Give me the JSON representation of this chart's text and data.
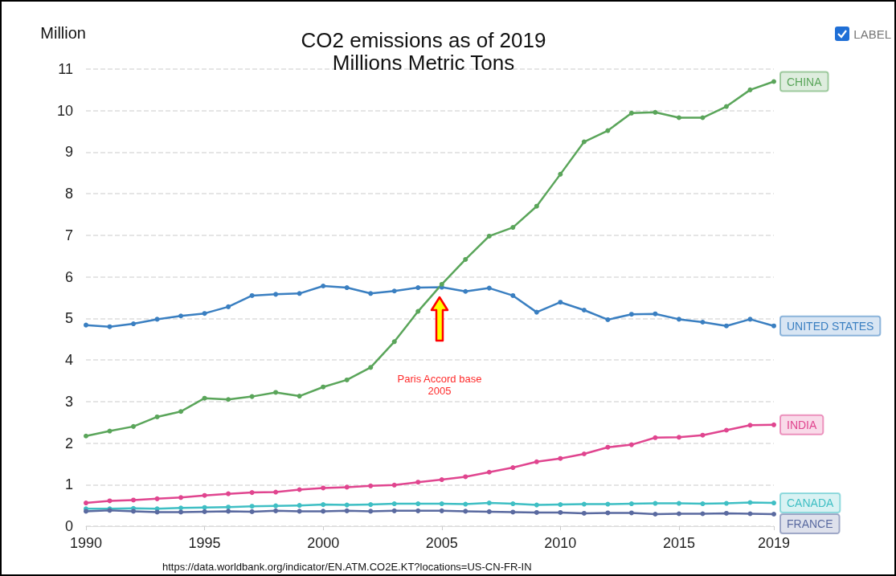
{
  "chart_data": {
    "type": "line",
    "title": "CO2 emissions as of 2019",
    "subtitle": "Millions Metric Tons",
    "ylabel": "Million",
    "x": [
      1990,
      1991,
      1992,
      1993,
      1994,
      1995,
      1996,
      1997,
      1998,
      1999,
      2000,
      2001,
      2002,
      2003,
      2004,
      2005,
      2006,
      2007,
      2008,
      2009,
      2010,
      2011,
      2012,
      2013,
      2014,
      2015,
      2016,
      2017,
      2018,
      2019
    ],
    "series": [
      {
        "name": "UNITED STATES",
        "color": "#3a7fc1",
        "values": [
          4.84,
          4.8,
          4.87,
          4.98,
          5.06,
          5.12,
          5.28,
          5.55,
          5.58,
          5.6,
          5.78,
          5.74,
          5.6,
          5.66,
          5.74,
          5.75,
          5.65,
          5.73,
          5.55,
          5.15,
          5.39,
          5.2,
          4.97,
          5.1,
          5.11,
          4.98,
          4.91,
          4.82,
          4.98,
          4.82
        ]
      },
      {
        "name": "CHINA",
        "color": "#5aa55a",
        "values": [
          2.17,
          2.29,
          2.4,
          2.63,
          2.76,
          3.08,
          3.05,
          3.12,
          3.22,
          3.13,
          3.35,
          3.52,
          3.82,
          4.44,
          5.17,
          5.82,
          6.42,
          6.98,
          7.19,
          7.7,
          8.47,
          9.25,
          9.52,
          9.94,
          9.96,
          9.83,
          9.83,
          10.1,
          10.5,
          10.7
        ]
      },
      {
        "name": "INDIA",
        "color": "#e0458f",
        "values": [
          0.56,
          0.61,
          0.63,
          0.66,
          0.69,
          0.74,
          0.78,
          0.81,
          0.82,
          0.88,
          0.92,
          0.94,
          0.97,
          0.99,
          1.06,
          1.12,
          1.19,
          1.3,
          1.41,
          1.55,
          1.63,
          1.74,
          1.9,
          1.96,
          2.13,
          2.14,
          2.19,
          2.31,
          2.43,
          2.44
        ]
      },
      {
        "name": "CANADA",
        "color": "#3fbfc4",
        "values": [
          0.42,
          0.42,
          0.43,
          0.42,
          0.44,
          0.45,
          0.46,
          0.48,
          0.49,
          0.5,
          0.52,
          0.51,
          0.52,
          0.54,
          0.54,
          0.54,
          0.53,
          0.56,
          0.54,
          0.51,
          0.52,
          0.53,
          0.53,
          0.54,
          0.55,
          0.55,
          0.54,
          0.55,
          0.57,
          0.56
        ]
      },
      {
        "name": "FRANCE",
        "color": "#5a6aa0",
        "values": [
          0.36,
          0.38,
          0.36,
          0.34,
          0.34,
          0.35,
          0.36,
          0.35,
          0.37,
          0.36,
          0.36,
          0.37,
          0.36,
          0.37,
          0.37,
          0.37,
          0.36,
          0.35,
          0.34,
          0.33,
          0.33,
          0.31,
          0.32,
          0.32,
          0.29,
          0.3,
          0.3,
          0.31,
          0.3,
          0.29
        ]
      }
    ],
    "xlim": [
      1990,
      2019
    ],
    "xticks": [
      1990,
      1995,
      2000,
      2005,
      2010,
      2015,
      2019
    ],
    "ylim": [
      0,
      11
    ],
    "yticks": [
      0,
      1,
      2,
      3,
      4,
      5,
      6,
      7,
      8,
      9,
      10,
      11
    ],
    "grid": "y",
    "marker": "circle",
    "line_style": "solid",
    "legend": false,
    "annotations": [
      "Paris Accord base\n2005",
      "LABEL",
      "https://data.worldbank.org/indicator/EN.ATM.CO2E.KT?locations=US-CN-FR-IN"
    ]
  }
}
